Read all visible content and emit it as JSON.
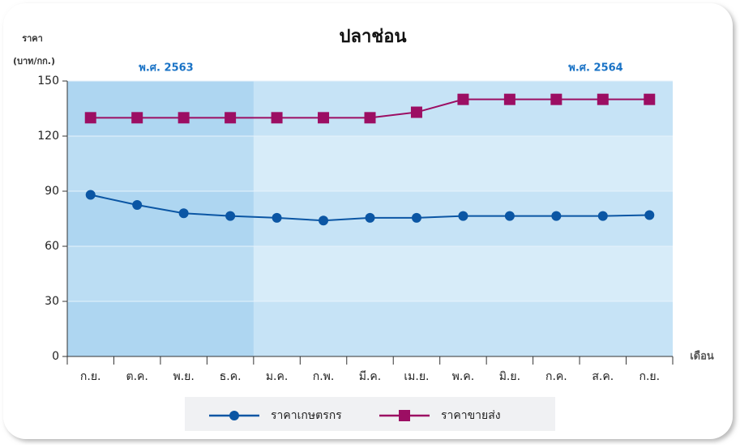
{
  "chart_data": {
    "type": "line",
    "title": "ปลาช่อน",
    "ylabel": "ราคา",
    "ylabel_unit": "(บาท/กก.)",
    "xlabel": "เดือน",
    "annotations": [
      "พ.ศ. 2563",
      "พ.ศ. 2564"
    ],
    "categories": [
      "ก.ย.",
      "ต.ค.",
      "พ.ย.",
      "ธ.ค.",
      "ม.ค.",
      "ก.พ.",
      "มี.ค.",
      "เม.ย.",
      "พ.ค.",
      "มิ.ย.",
      "ก.ค.",
      "ส.ค.",
      "ก.ย."
    ],
    "series": [
      {
        "name": "ราคาเกษตรกร",
        "color": "#0b56a4",
        "marker": "circle",
        "values": [
          88,
          82.5,
          78,
          76.5,
          75.5,
          74,
          75.5,
          75.5,
          76.5,
          76.5,
          76.5,
          76.5,
          77
        ]
      },
      {
        "name": "ราคาขายส่ง",
        "color": "#9c0e63",
        "marker": "square",
        "values": [
          130,
          130,
          130,
          130,
          130,
          130,
          130,
          133,
          140,
          140,
          140,
          140,
          140
        ]
      }
    ],
    "ylim": [
      0,
      150
    ],
    "yticks": [
      0,
      30,
      60,
      90,
      120,
      150
    ]
  }
}
